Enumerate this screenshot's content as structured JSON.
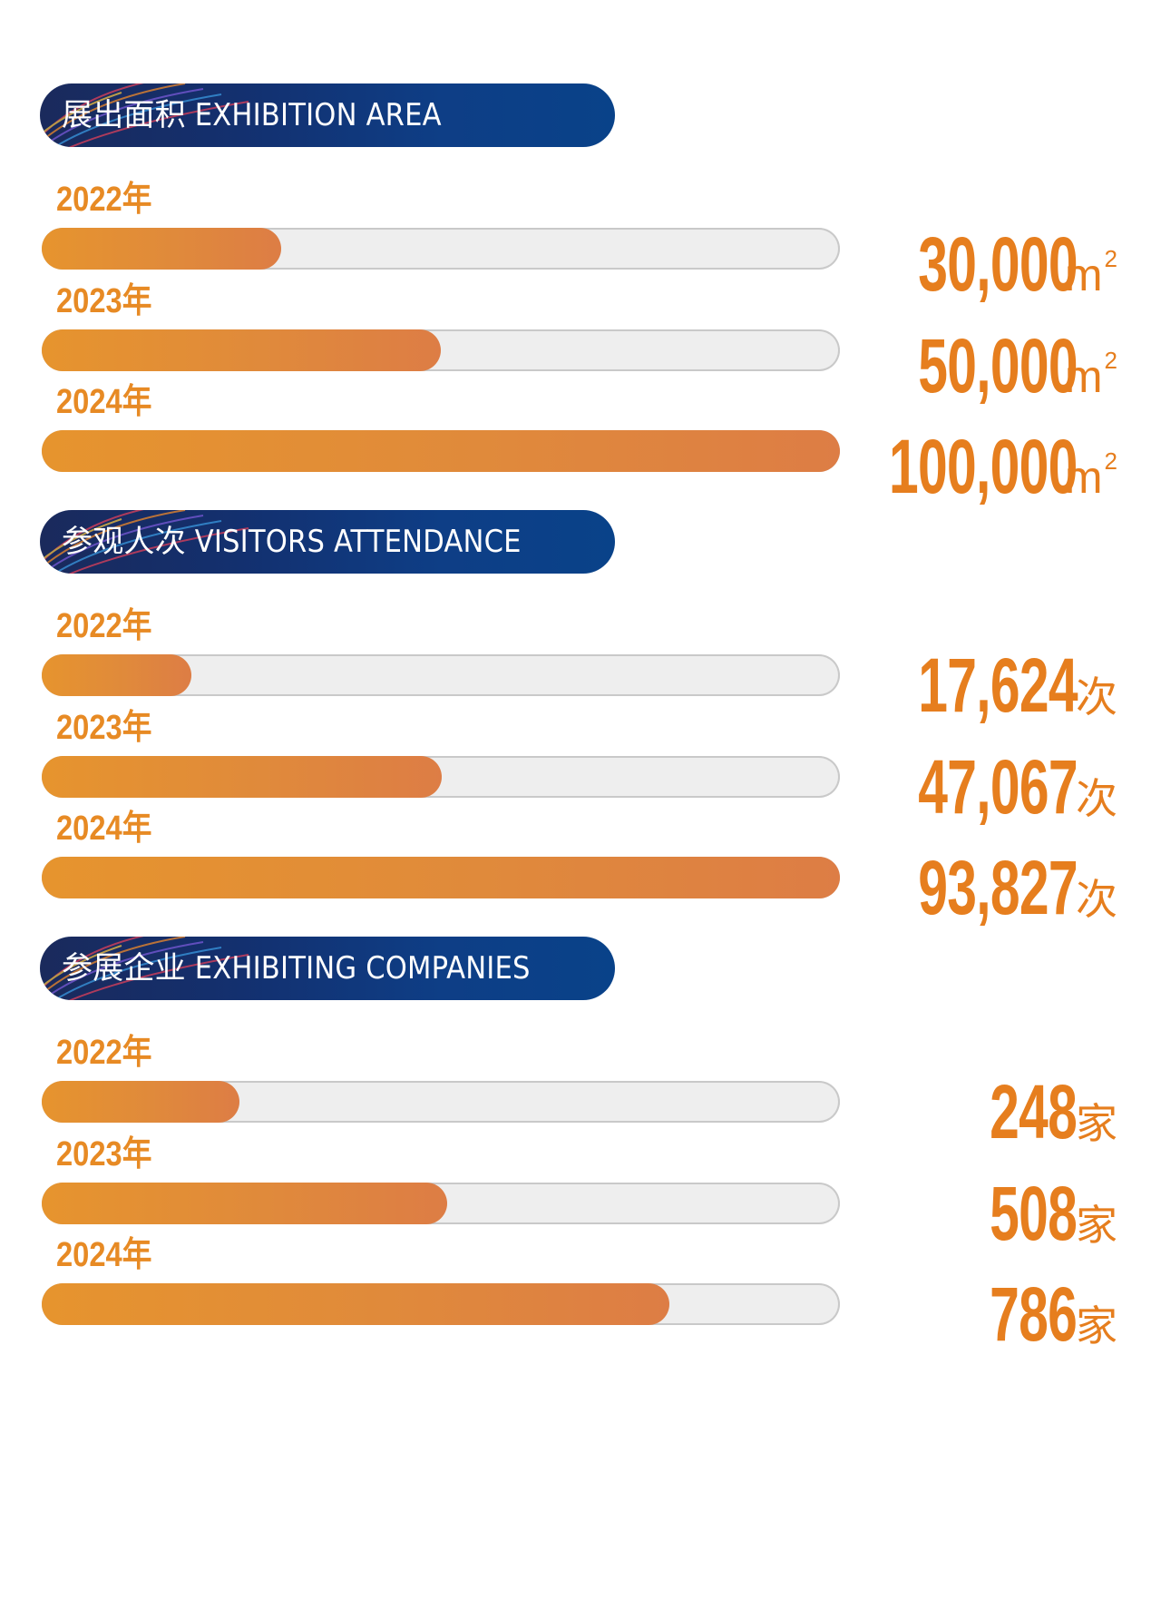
{
  "colors": {
    "accent": "#e67e1e",
    "bar_fill_start": "#e6942e",
    "bar_fill_end": "#dd7d45",
    "track": "#eeeeee",
    "header_bg": "#0e3e86"
  },
  "chart_data": [
    {
      "type": "bar",
      "orientation": "horizontal",
      "title": "展出面积 EXHIBITION AREA",
      "categories": [
        "2022年",
        "2023年",
        "2024年"
      ],
      "values": [
        30000,
        50000,
        100000
      ],
      "value_labels": [
        "30,000",
        "50,000",
        "100,000"
      ],
      "unit": "m",
      "unit_sup": "2",
      "max": 100000
    },
    {
      "type": "bar",
      "orientation": "horizontal",
      "title": "参观人次 VISITORS ATTENDANCE",
      "categories": [
        "2022年",
        "2023年",
        "2024年"
      ],
      "values": [
        17624,
        47067,
        93827
      ],
      "value_labels": [
        "17,624",
        "47,067",
        "93,827"
      ],
      "unit": "次",
      "max": 93827
    },
    {
      "type": "bar",
      "orientation": "horizontal",
      "title": "参展企业 EXHIBITING COMPANIES",
      "categories": [
        "2022年",
        "2023年",
        "2024年"
      ],
      "values": [
        248,
        508,
        786
      ],
      "value_labels": [
        "248",
        "508",
        "786"
      ],
      "unit": "家",
      "max": 1000
    }
  ]
}
